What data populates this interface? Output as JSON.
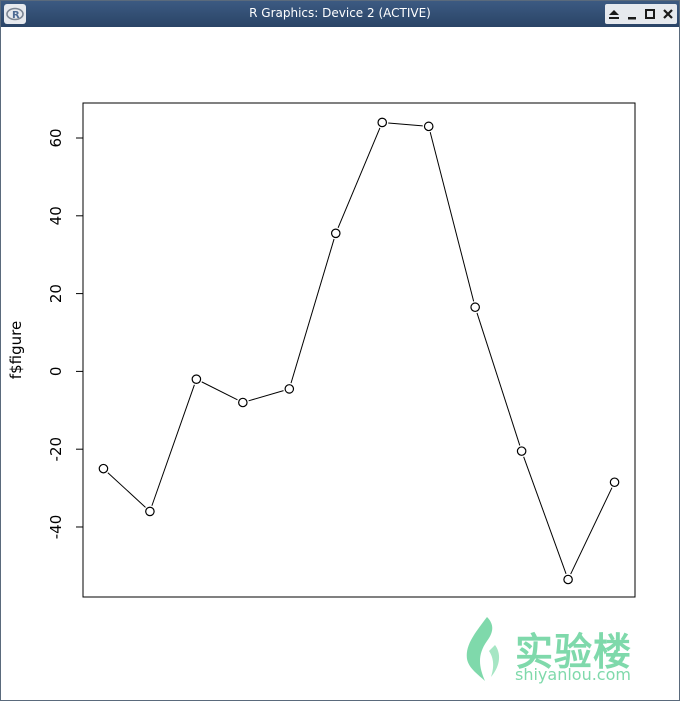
{
  "window": {
    "title": "R Graphics: Device 2 (ACTIVE)",
    "app_icon_glyph": "R",
    "buttons": [
      "eject-icon",
      "minimize-icon",
      "maximize-icon",
      "close-icon"
    ]
  },
  "watermark": {
    "text_cn": "实验楼",
    "text_en": "shiyanlou.com",
    "color": "#7fd9ab"
  },
  "chart_data": {
    "type": "line",
    "markers": "open-circle",
    "x": [
      1,
      2,
      3,
      4,
      5,
      6,
      7,
      8,
      9,
      10,
      11,
      12
    ],
    "series": [
      {
        "values": [
          -25,
          -36,
          -2,
          -8,
          -4.5,
          35.5,
          64,
          63,
          16.5,
          -20.5,
          -53.5,
          -28.5
        ]
      }
    ],
    "ylabel": "f$figure",
    "xlabel": "",
    "yticks": [
      -40,
      -20,
      0,
      20,
      40,
      60
    ],
    "ytick_labels": [
      "-40",
      "-20",
      "0",
      "20",
      "40",
      "60"
    ],
    "ylim": [
      -58,
      69
    ],
    "xlim": [
      0.56,
      12.44
    ],
    "x_axis_shown": false,
    "grid": false
  }
}
